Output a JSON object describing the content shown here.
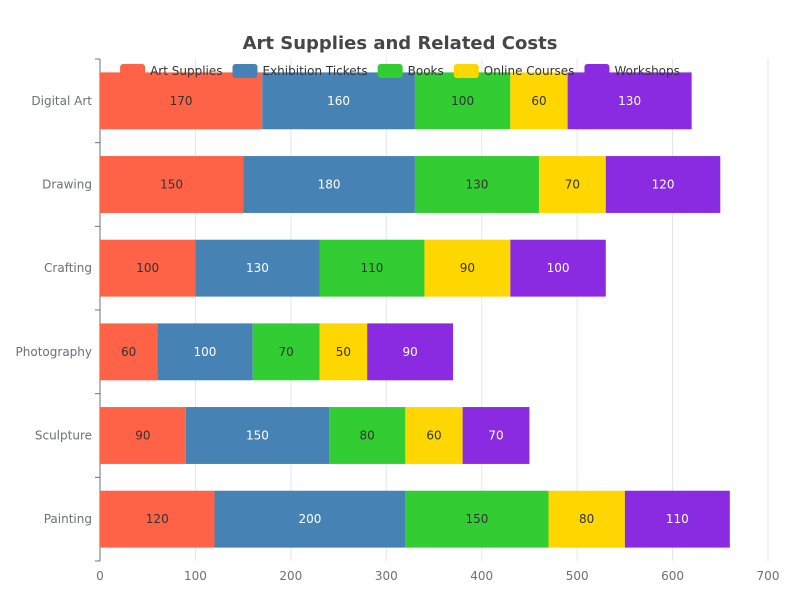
{
  "chart_data": {
    "type": "bar",
    "orientation": "horizontal",
    "stacked": true,
    "title": "Art Supplies and Related Costs",
    "categories": [
      "Digital Art",
      "Drawing",
      "Crafting",
      "Photography",
      "Sculpture",
      "Painting"
    ],
    "series": [
      {
        "name": "Art Supplies",
        "color": "#ff6347",
        "label_color": "#333333",
        "values": [
          170,
          150,
          100,
          60,
          90,
          120
        ]
      },
      {
        "name": "Exhibition Tickets",
        "color": "#4682b4",
        "label_color": "#ffffff",
        "values": [
          160,
          180,
          130,
          100,
          150,
          200
        ]
      },
      {
        "name": "Books",
        "color": "#32cd32",
        "label_color": "#333333",
        "values": [
          100,
          130,
          110,
          70,
          80,
          150
        ]
      },
      {
        "name": "Online Courses",
        "color": "#ffd700",
        "label_color": "#333333",
        "values": [
          60,
          70,
          90,
          50,
          60,
          80
        ]
      },
      {
        "name": "Workshops",
        "color": "#8a2be2",
        "label_color": "#ffffff",
        "values": [
          130,
          120,
          100,
          90,
          70,
          110
        ]
      }
    ],
    "xlim": [
      0,
      700
    ],
    "xticks": [
      "0",
      "100",
      "200",
      "300",
      "400",
      "500",
      "600",
      "700"
    ],
    "grid": "vertical",
    "legend": "top-center",
    "data_labels": true
  }
}
